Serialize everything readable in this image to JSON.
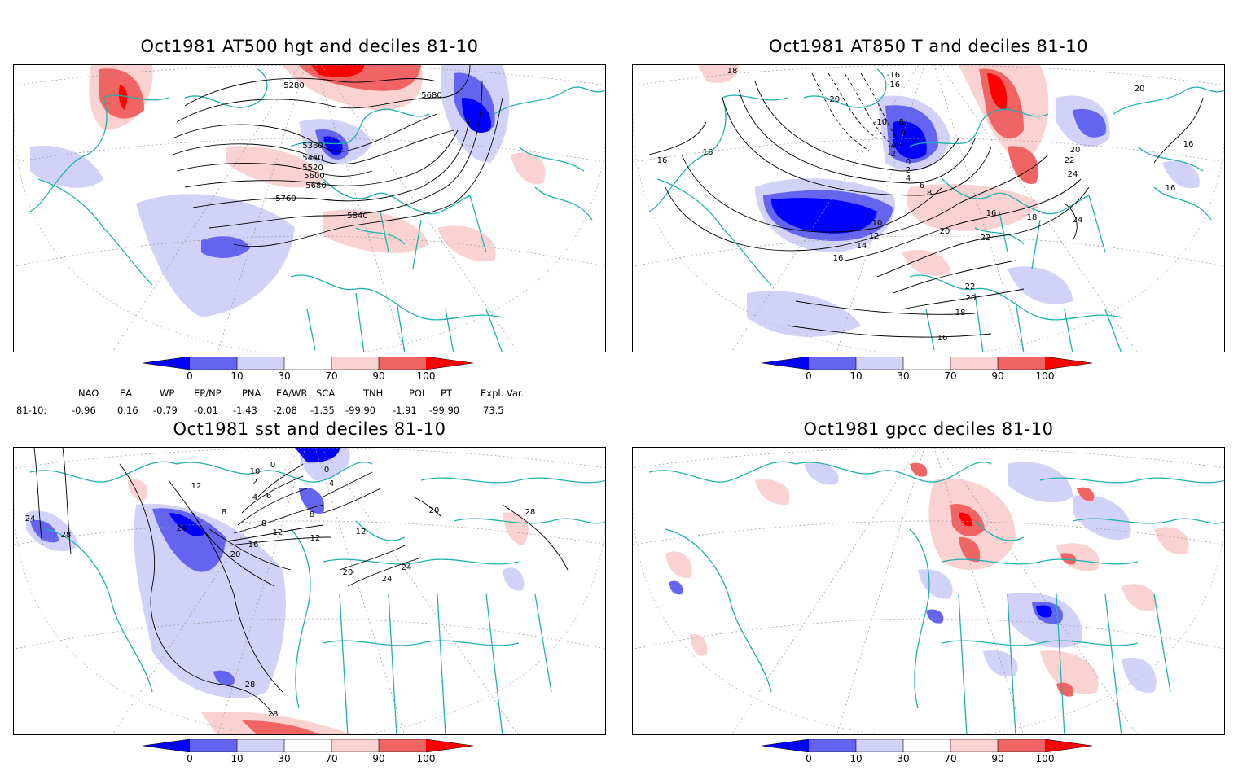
{
  "panels": [
    {
      "title": "Oct1981 AT500 hgt and deciles 81-10",
      "contour_labels": [
        "5280",
        "5680",
        "5360",
        "5440",
        "5520",
        "5600",
        "5680",
        "5760",
        "5840"
      ]
    },
    {
      "title": "Oct1981 AT850 T and deciles 81-10",
      "contour_labels": [
        "18",
        "16",
        "-20",
        "-16",
        "-16",
        "-10",
        "-8",
        "-6",
        "-4",
        "-2",
        "0",
        "2",
        "4",
        "6",
        "8",
        "10",
        "12",
        "14",
        "16",
        "16",
        "18",
        "20",
        "22",
        "20",
        "22",
        "24",
        "24",
        "22",
        "20",
        "18",
        "16",
        "16",
        "16",
        "20",
        "16"
      ]
    },
    {
      "title": "Oct1981 sst and deciles 81-10",
      "contour_labels": [
        "24",
        "28",
        "12",
        "10",
        "0",
        "0",
        "2",
        "4",
        "6",
        "8",
        "4",
        "8",
        "12",
        "16",
        "20",
        "24",
        "8",
        "12",
        "12",
        "20",
        "24",
        "24",
        "20",
        "28",
        "28",
        "28"
      ]
    },
    {
      "title": "Oct1981 gpcc deciles 81-10",
      "contour_labels": []
    }
  ],
  "colorbar": {
    "ticks": [
      "0",
      "10",
      "30",
      "70",
      "90",
      "100"
    ],
    "colors": [
      "#0000ff",
      "#6464f0",
      "#d2d2f8",
      "#ffffff",
      "#fad2d2",
      "#f06464",
      "#ff0000"
    ]
  },
  "teleconnections": {
    "headers": [
      "NAO",
      "EA",
      "WP",
      "EP/NP",
      "PNA",
      "EA/WR",
      "SCA",
      "TNH",
      "POL",
      "PT",
      "Expl. Var."
    ],
    "row_label": "81-10:",
    "values": [
      "-0.96",
      "0.16",
      "-0.79",
      "-0.01",
      "-1.43",
      "-2.08",
      "-1.35",
      "-99.90",
      "-1.91",
      "-99.90",
      "73.5"
    ]
  }
}
